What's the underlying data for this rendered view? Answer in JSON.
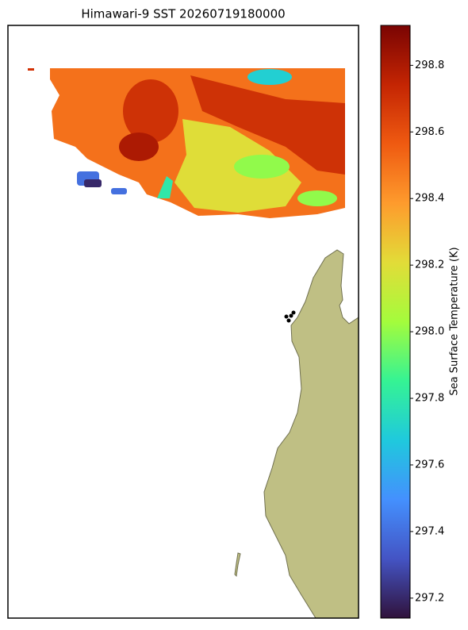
{
  "title": "Himawari-9 SST 20260719180000",
  "colorbar": {
    "label": "Sea Surface Temperature (K)",
    "lim": [
      297.14,
      298.92
    ],
    "ticks": [
      297.2,
      297.4,
      297.6,
      297.8,
      {
        "value": 298,
        "label": "298.0"
      },
      298.2,
      298.4,
      298.6,
      298.8
    ]
  },
  "sst_patches": [
    298.5,
    298.7,
    298.8,
    297.7,
    298.2,
    298.0,
    297.4,
    297.2,
    297.4,
    297.8
  ]
}
